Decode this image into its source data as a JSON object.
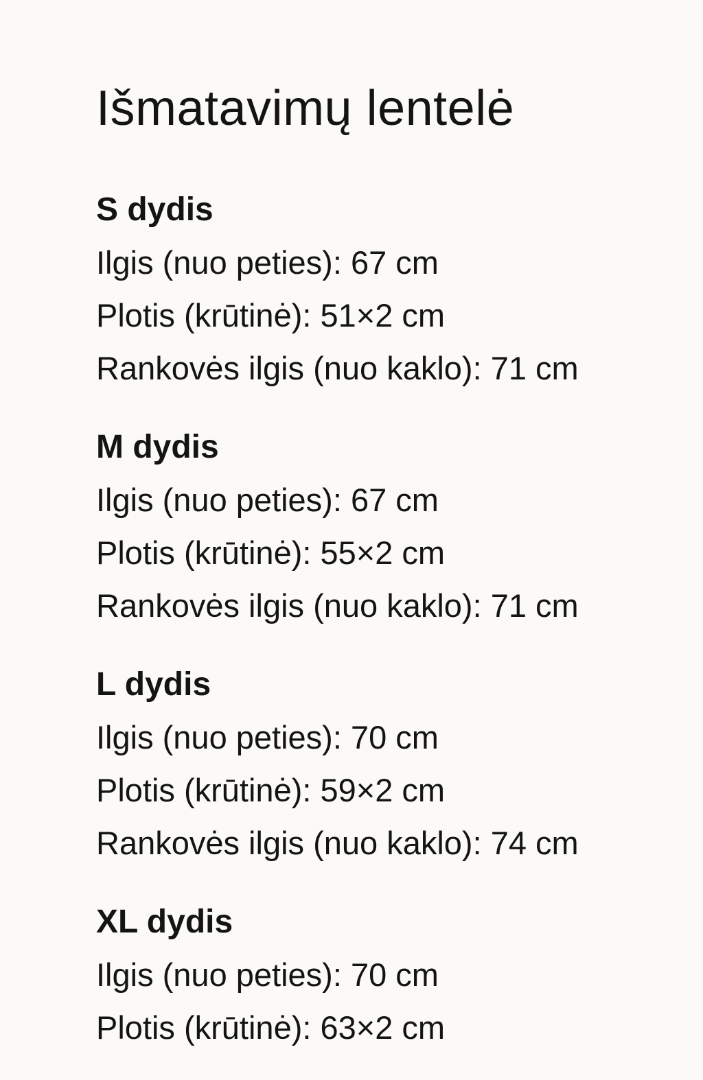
{
  "title": "Išmatavimų lentelė",
  "sections": [
    {
      "heading": "S dydis",
      "lines": [
        "Ilgis (nuo peties): 67 cm",
        "Plotis (krūtinė): 51×2 cm",
        "Rankovės ilgis (nuo kaklo): 71 cm"
      ]
    },
    {
      "heading": "M dydis",
      "lines": [
        "Ilgis (nuo peties): 67 cm",
        "Plotis (krūtinė): 55×2 cm",
        "Rankovės ilgis (nuo kaklo): 71 cm"
      ]
    },
    {
      "heading": "L dydis",
      "lines": [
        "Ilgis (nuo peties): 70 cm",
        "Plotis (krūtinė): 59×2 cm",
        "Rankovės ilgis (nuo kaklo): 74 cm"
      ]
    },
    {
      "heading": "XL dydis",
      "lines": [
        "Ilgis (nuo peties): 70 cm",
        "Plotis (krūtinė): 63×2 cm"
      ]
    }
  ]
}
